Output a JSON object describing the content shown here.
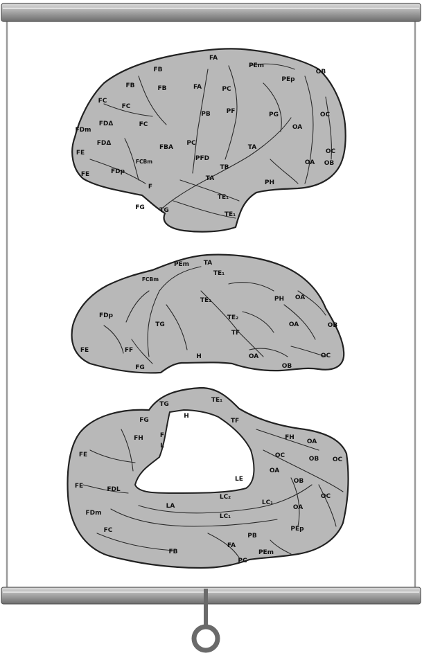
{
  "colors": {
    "cortex": "#b8b8b8",
    "outline": "#222222",
    "bar": "#9a9a9a",
    "paper": "#ffffff"
  },
  "views": {
    "lateral": {
      "labels": [
        "FA",
        "FB",
        "PEm",
        "OB",
        "FB",
        "FB",
        "FA",
        "PC",
        "PEp",
        "FC",
        "FC",
        "PB",
        "PF",
        "PG",
        "OC",
        "FDΔ",
        "OA",
        "FDm",
        "FC",
        "FDΔ",
        "PC",
        "FBA",
        "TA",
        "OC",
        "FE",
        "FCBm",
        "PFD",
        "TB",
        "OA",
        "OB",
        "FE",
        "FDp",
        "TA",
        "PH",
        "TE₁",
        "FG",
        "TG",
        "TE₁",
        "F"
      ]
    },
    "ventral": {
      "labels": [
        "PEm",
        "TA",
        "FCBm",
        "TE₁",
        "TE₁",
        "PH",
        "OA",
        "FDp",
        "TE₂",
        "TG",
        "OA",
        "OB",
        "TF",
        "FE",
        "FF",
        "H",
        "OA",
        "OC",
        "FG",
        "OB"
      ]
    },
    "medial": {
      "labels": [
        "TG",
        "TE₁",
        "H",
        "FG",
        "TF",
        "FH",
        "F",
        "L",
        "FE",
        "LE",
        "OC",
        "OB",
        "OC",
        "OA",
        "OB",
        "FE",
        "FDL",
        "LA",
        "LC₂",
        "LC₁",
        "OC",
        "FDm",
        "LC₁",
        "OA",
        "FC",
        "PB",
        "PEp",
        "FB",
        "FA",
        "PEm",
        "PC",
        "FH",
        "OA"
      ]
    }
  }
}
